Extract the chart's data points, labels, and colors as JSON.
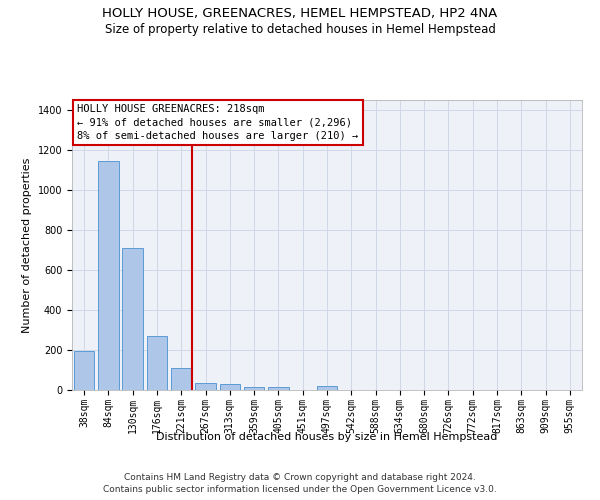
{
  "title": "HOLLY HOUSE, GREENACRES, HEMEL HEMPSTEAD, HP2 4NA",
  "subtitle": "Size of property relative to detached houses in Hemel Hempstead",
  "xlabel": "Distribution of detached houses by size in Hemel Hempstead",
  "ylabel": "Number of detached properties",
  "bin_labels": [
    "38sqm",
    "84sqm",
    "130sqm",
    "176sqm",
    "221sqm",
    "267sqm",
    "313sqm",
    "359sqm",
    "405sqm",
    "451sqm",
    "497sqm",
    "542sqm",
    "588sqm",
    "634sqm",
    "680sqm",
    "726sqm",
    "772sqm",
    "817sqm",
    "863sqm",
    "909sqm",
    "955sqm"
  ],
  "bar_values": [
    195,
    1145,
    710,
    270,
    108,
    35,
    28,
    15,
    13,
    0,
    18,
    0,
    0,
    0,
    0,
    0,
    0,
    0,
    0,
    0,
    0
  ],
  "bar_color": "#aec6e8",
  "bar_edge_color": "#5b9bd5",
  "grid_color": "#d0d8e8",
  "background_color": "#eef2f8",
  "vline_x_index": 4,
  "vline_color": "#cc0000",
  "annotation_text": "HOLLY HOUSE GREENACRES: 218sqm\n← 91% of detached houses are smaller (2,296)\n8% of semi-detached houses are larger (210) →",
  "annotation_box_color": "#cc0000",
  "ylim": [
    0,
    1450
  ],
  "yticks": [
    0,
    200,
    400,
    600,
    800,
    1000,
    1200,
    1400
  ],
  "footnote1": "Contains HM Land Registry data © Crown copyright and database right 2024.",
  "footnote2": "Contains public sector information licensed under the Open Government Licence v3.0.",
  "title_fontsize": 9.5,
  "subtitle_fontsize": 8.5,
  "xlabel_fontsize": 8,
  "ylabel_fontsize": 8,
  "tick_fontsize": 7,
  "annotation_fontsize": 7.5,
  "footnote_fontsize": 6.5
}
